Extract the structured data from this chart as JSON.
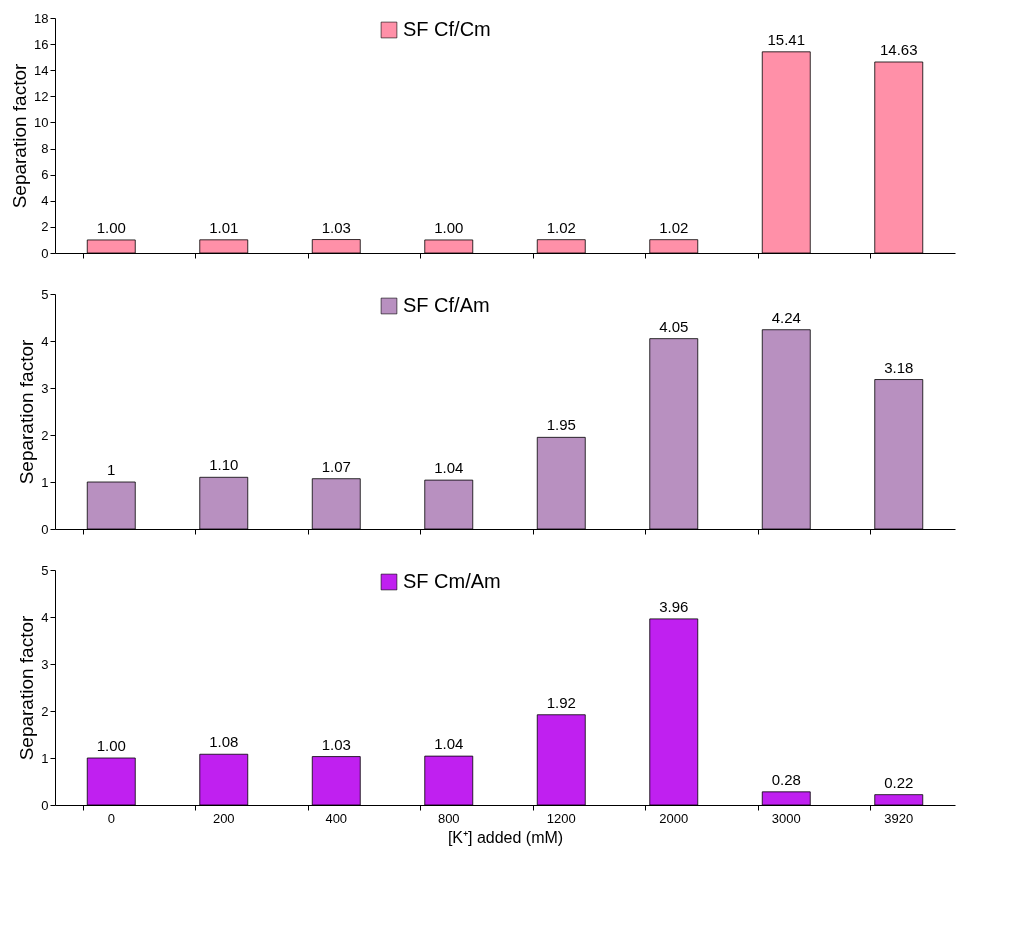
{
  "chart_data": [
    {
      "type": "bar",
      "ylabel": "Separation factor",
      "categories": [
        "0",
        "200",
        "400",
        "800",
        "1200",
        "2000",
        "3000",
        "3920"
      ],
      "ylim": [
        0,
        18
      ],
      "yticks": [
        0,
        2,
        4,
        6,
        8,
        10,
        12,
        14,
        16,
        18
      ],
      "tick_labels": "y",
      "legend": "top",
      "grid": false,
      "series": [
        {
          "name": "SF Cf/Cm",
          "color": "#ff90a8",
          "values": [
            1.0,
            1.01,
            1.03,
            1.0,
            1.02,
            1.02,
            15.41,
            14.63
          ],
          "value_labels": [
            "1.00",
            "1.01",
            "1.03",
            "1.00",
            "1.02",
            "1.02",
            "15.41",
            "14.63"
          ]
        }
      ]
    },
    {
      "type": "bar",
      "ylabel": "Separation factor",
      "categories": [
        "0",
        "200",
        "400",
        "800",
        "1200",
        "2000",
        "3000",
        "3920"
      ],
      "ylim": [
        0,
        5
      ],
      "yticks": [
        0,
        1,
        2,
        3,
        4,
        5
      ],
      "tick_labels": "y",
      "legend": "top",
      "grid": false,
      "series": [
        {
          "name": "SF Cf/Am",
          "color": "#b890c0",
          "values": [
            1,
            1.1,
            1.07,
            1.04,
            1.95,
            4.05,
            4.24,
            3.18
          ],
          "value_labels": [
            "1",
            "1.10",
            "1.07",
            "1.04",
            "1.95",
            "4.05",
            "4.24",
            "3.18"
          ]
        }
      ]
    },
    {
      "type": "bar",
      "xlabel": "[K⁺] added (mM)",
      "ylabel": "Separation factor",
      "categories": [
        "0",
        "200",
        "400",
        "800",
        "1200",
        "2000",
        "3000",
        "3920"
      ],
      "ylim": [
        0,
        5
      ],
      "yticks": [
        0,
        1,
        2,
        3,
        4,
        5
      ],
      "legend": "top",
      "grid": false,
      "series": [
        {
          "name": "SF Cm/Am",
          "color": "#c020f0",
          "values": [
            1.0,
            1.08,
            1.03,
            1.04,
            1.92,
            3.96,
            0.28,
            0.22
          ],
          "value_labels": [
            "1.00",
            "1.08",
            "1.03",
            "1.04",
            "1.92",
            "3.96",
            "0.28",
            "0.22"
          ]
        }
      ]
    }
  ]
}
